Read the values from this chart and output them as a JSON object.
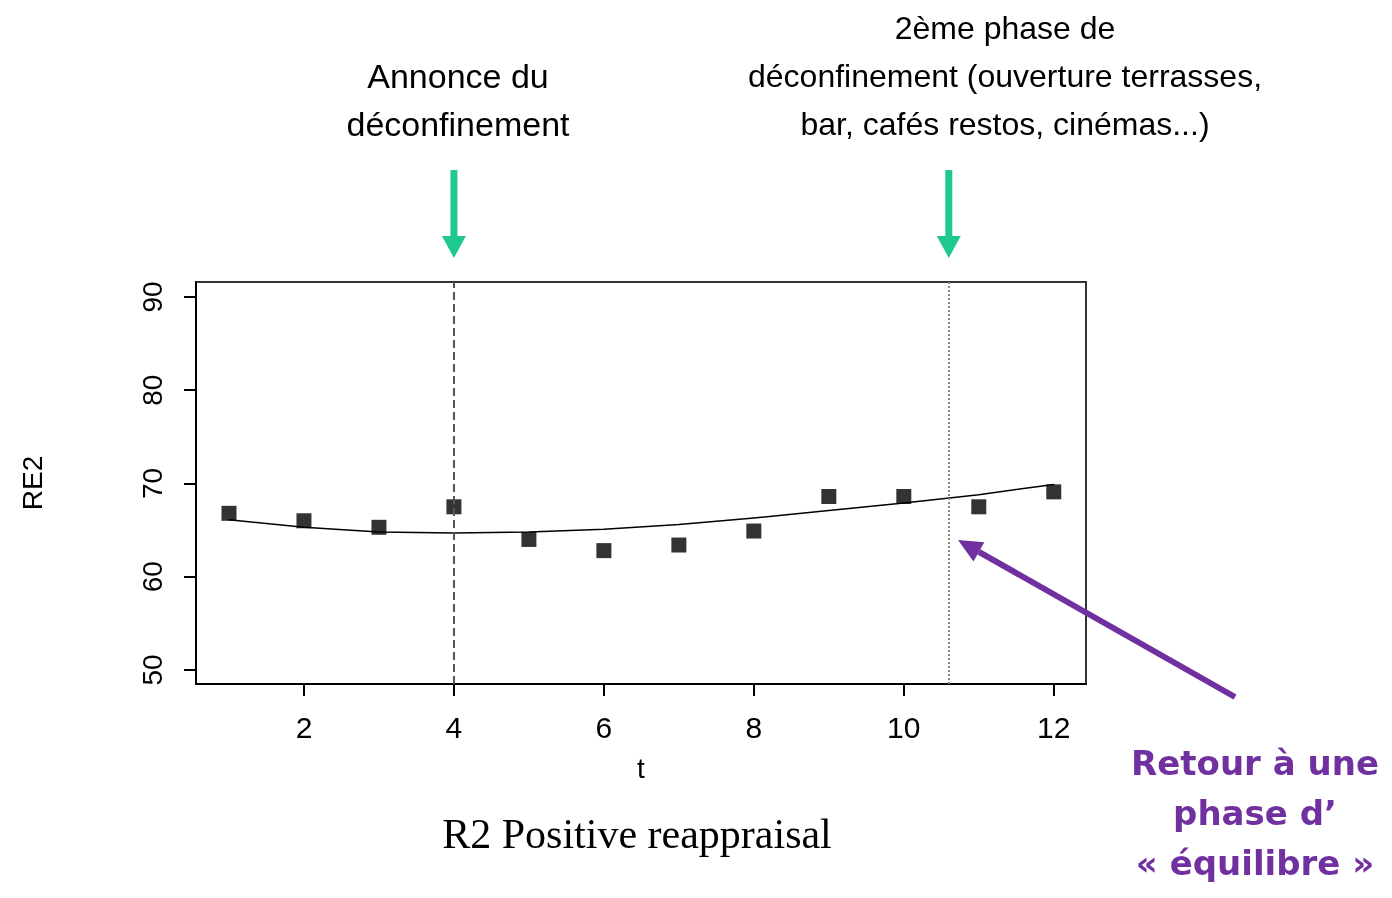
{
  "chart_data": {
    "type": "scatter",
    "title": "R2 Positive reappraisal",
    "xlabel": "t",
    "ylabel": "RE2",
    "x": [
      1,
      2,
      3,
      4,
      5,
      6,
      7,
      8,
      9,
      10,
      11,
      12
    ],
    "series": [
      {
        "color": "#000000",
        "values": [
          66.8,
          66.0,
          65.3,
          67.5,
          64.0,
          62.8,
          63.4,
          64.9,
          68.6,
          68.6,
          67.5,
          69.1
        ]
      },
      {
        "type": "line",
        "color": "#000000",
        "marker": "none",
        "line_style": "solid",
        "values": [
          66.1,
          65.3,
          64.8,
          64.7,
          64.8,
          65.1,
          65.6,
          66.3,
          67.1,
          67.9,
          68.8,
          69.9
        ]
      }
    ],
    "marker": "square",
    "xlim": [
      0.56,
      12.43
    ],
    "ylim": [
      48.5,
      91.6
    ],
    "xticks": [
      2,
      4,
      6,
      8,
      10,
      12
    ],
    "yticks": [
      50,
      60,
      70,
      80,
      90
    ],
    "grid": false,
    "ref_lines": [
      {
        "axis": "x",
        "value": 4,
        "line_style": "dashed",
        "color": "#555555"
      },
      {
        "axis": "x",
        "value": 10.6,
        "line_style": "dotted",
        "color": "#888888"
      }
    ],
    "annotations": [
      "Annonce du\ndéconfinement",
      "2ème phase de\ndéconfinement (ouverture terrasses,\nbar, cafés restos, cinémas...)",
      "Retour à une\nphase d’\n« équilibre »"
    ]
  }
}
